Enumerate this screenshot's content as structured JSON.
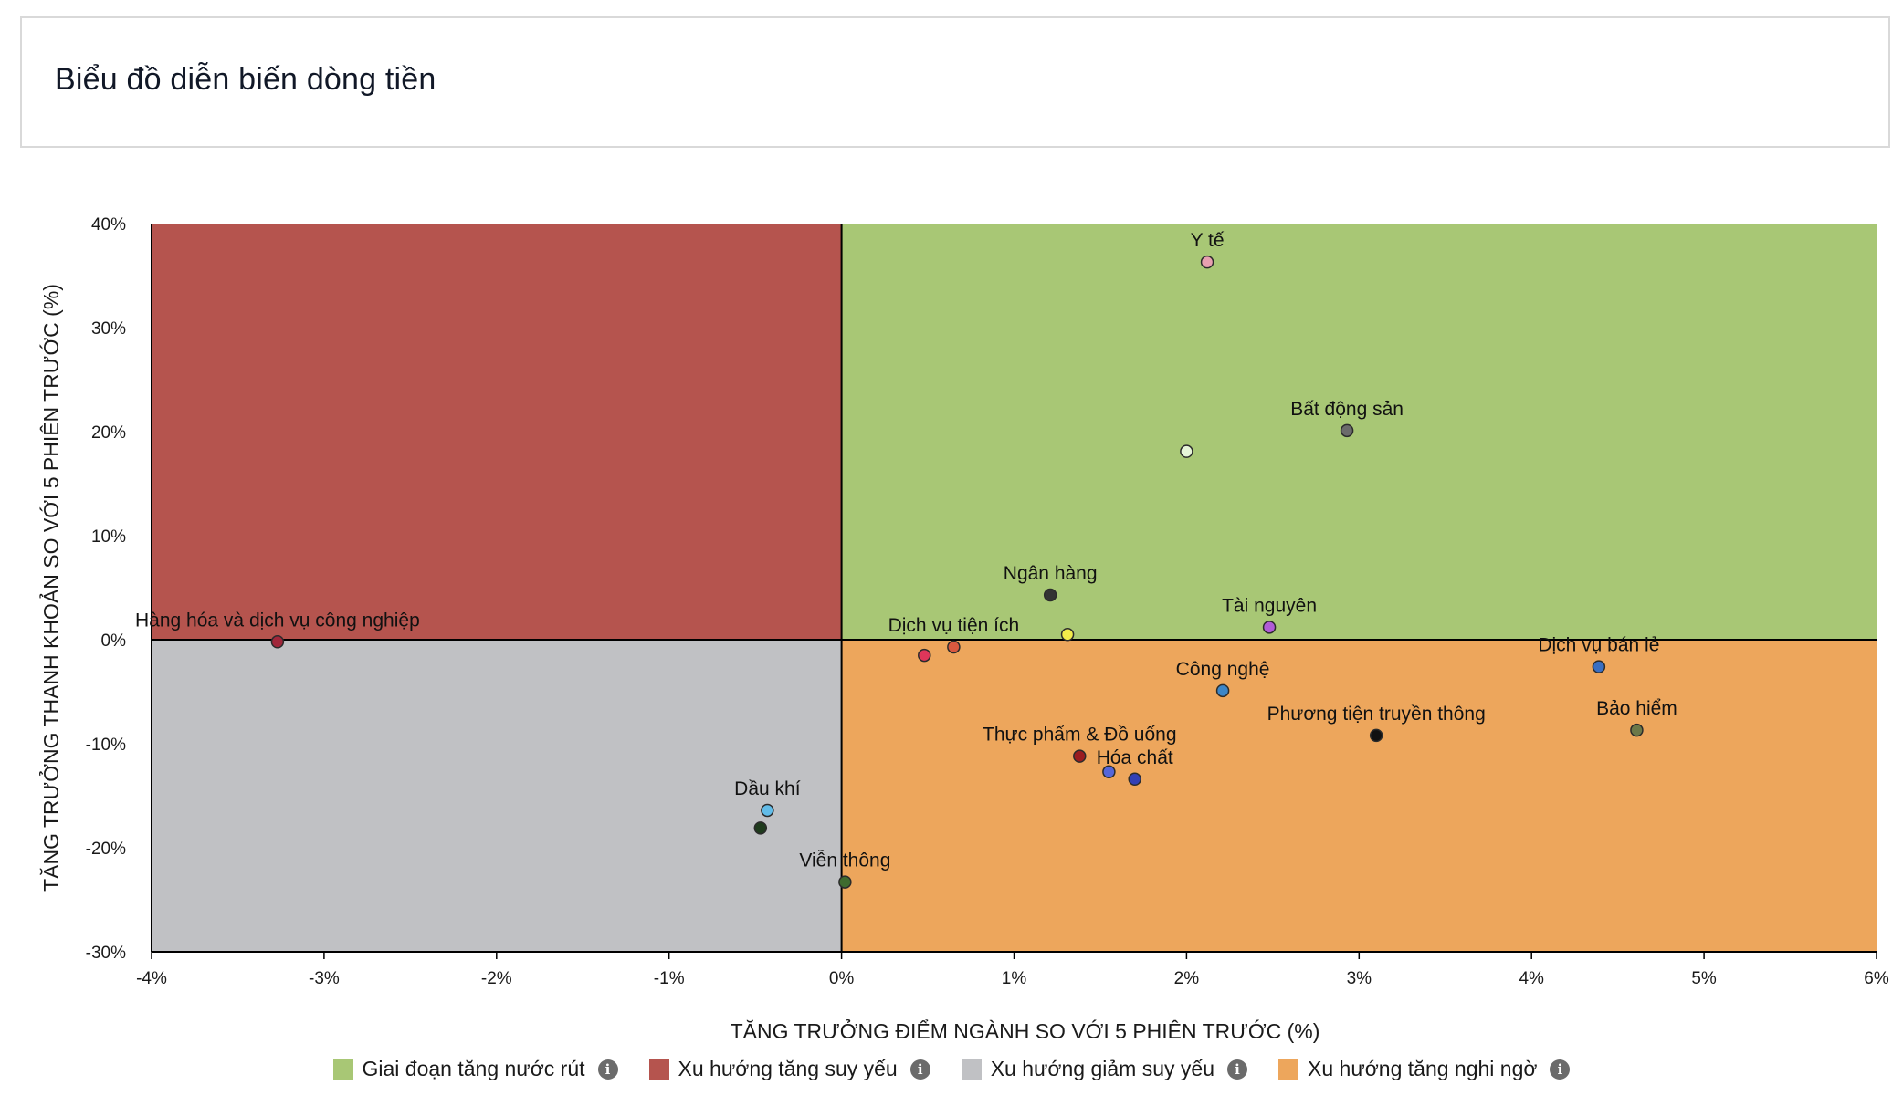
{
  "page": {
    "title": "Biểu đồ diễn biến dòng tiền"
  },
  "chart_data": {
    "type": "scatter",
    "title": "Biểu đồ diễn biến dòng tiền",
    "xlabel": "TĂNG TRƯỞNG ĐIỂM NGÀNH SO VỚI 5 PHIÊN TRƯỚC (%)",
    "ylabel": "TĂNG TRƯỞNG THANH KHOẢN SO VỚI 5 PHIÊN TRƯỚC (%)",
    "xlim": [
      -4,
      6
    ],
    "ylim": [
      -30,
      40
    ],
    "x_ticks": [
      "-4%",
      "-3%",
      "-2%",
      "-1%",
      "0%",
      "1%",
      "2%",
      "3%",
      "4%",
      "5%",
      "6%"
    ],
    "x_tick_values": [
      -4,
      -3,
      -2,
      -1,
      0,
      1,
      2,
      3,
      4,
      5,
      6
    ],
    "y_ticks": [
      "40%",
      "30%",
      "20%",
      "10%",
      "0%",
      "-10%",
      "-20%",
      "-30%"
    ],
    "y_tick_values": [
      40,
      30,
      20,
      10,
      0,
      -10,
      -20,
      -30
    ],
    "quadrants": [
      {
        "name": "Giai đoạn tăng nước rút",
        "color": "#a8c775",
        "x_range": [
          0,
          6
        ],
        "y_range": [
          0,
          40
        ]
      },
      {
        "name": "Xu hướng tăng suy yếu",
        "color": "#b5544e",
        "x_range": [
          -4,
          0
        ],
        "y_range": [
          0,
          40
        ]
      },
      {
        "name": "Xu hướng giảm suy yếu",
        "color": "#c0c1c4",
        "x_range": [
          -4,
          0
        ],
        "y_range": [
          -30,
          0
        ]
      },
      {
        "name": "Xu hướng tăng nghi ngờ",
        "color": "#eda65c",
        "x_range": [
          0,
          6
        ],
        "y_range": [
          -30,
          0
        ]
      }
    ],
    "points": [
      {
        "label": "Y tế",
        "x": 2.12,
        "y": 36.3,
        "color": "#e8a0b0"
      },
      {
        "label": "Bất động sản",
        "x": 2.93,
        "y": 20.1,
        "color": "#6b6b6b"
      },
      {
        "label": "",
        "x": 2.0,
        "y": 18.1,
        "color": "#e6f5d8"
      },
      {
        "label": "Ngân hàng",
        "x": 1.21,
        "y": 4.3,
        "color": "#333333"
      },
      {
        "label": "Tài nguyên",
        "x": 2.48,
        "y": 1.2,
        "color": "#b05cd6"
      },
      {
        "label": "",
        "x": 1.31,
        "y": 0.5,
        "color": "#f2ec4a"
      },
      {
        "label": "Dịch vụ tiện ích",
        "x": 0.65,
        "y": -0.7,
        "color": "#d9593f"
      },
      {
        "label": "",
        "x": 0.48,
        "y": -1.5,
        "color": "#e0365a"
      },
      {
        "label": "Hàng hóa và dịch vụ công nghiệp",
        "x": -3.27,
        "y": -0.2,
        "color": "#a0263a"
      },
      {
        "label": "Dịch vụ bán lẻ",
        "x": 4.39,
        "y": -2.6,
        "color": "#3a6fc2"
      },
      {
        "label": "Công nghệ",
        "x": 2.21,
        "y": -4.9,
        "color": "#3d86c7"
      },
      {
        "label": "Bảo hiểm",
        "x": 4.61,
        "y": -8.7,
        "color": "#6c7848"
      },
      {
        "label": "Phương tiện truyền thông",
        "x": 3.1,
        "y": -9.2,
        "color": "#111111"
      },
      {
        "label": "Thực phẩm & Đồ uống",
        "x": 1.38,
        "y": -11.2,
        "color": "#9a1c20"
      },
      {
        "label": "Hóa chất",
        "x": 1.7,
        "y": -13.4,
        "color": "#3340b5"
      },
      {
        "label": "",
        "x": 1.55,
        "y": -12.7,
        "color": "#5566d9"
      },
      {
        "label": "Dầu khí",
        "x": -0.43,
        "y": -16.4,
        "color": "#62bce8"
      },
      {
        "label": "",
        "x": -0.47,
        "y": -18.1,
        "color": "#1f3b1d"
      },
      {
        "label": "Viễn thông",
        "x": 0.02,
        "y": -23.3,
        "color": "#3f6b2f"
      }
    ]
  },
  "legend": {
    "items": [
      {
        "label": "Giai đoạn tăng nước rút",
        "color": "#a8c775",
        "icon": "info-icon"
      },
      {
        "label": "Xu hướng tăng suy yếu",
        "color": "#b5544e",
        "icon": "info-icon"
      },
      {
        "label": "Xu hướng giảm suy yếu",
        "color": "#c0c1c4",
        "icon": "info-icon"
      },
      {
        "label": "Xu hướng tăng nghi ngờ",
        "color": "#eda65c",
        "icon": "info-icon"
      }
    ],
    "info_glyph": "i"
  }
}
